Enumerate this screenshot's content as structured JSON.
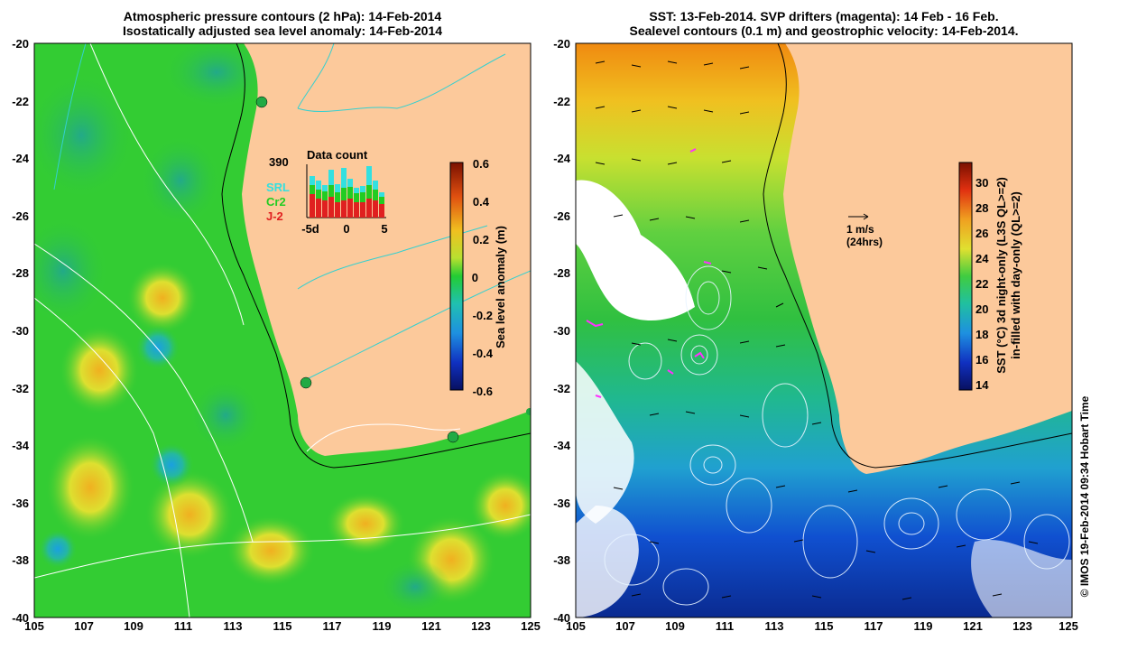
{
  "left_panel": {
    "title_line1": "Atmospheric pressure contours (2 hPa): 14-Feb-2014",
    "title_line2": "Isostatically adjusted sea level anomaly: 14-Feb-2014",
    "x_ticks": [
      "105",
      "107",
      "109",
      "111",
      "113",
      "115",
      "117",
      "119",
      "121",
      "123",
      "125"
    ],
    "y_ticks": [
      "-20",
      "-22",
      "-24",
      "-26",
      "-28",
      "-30",
      "-32",
      "-34",
      "-36",
      "-38",
      "-40"
    ],
    "colorbar_label": "Sea level anomaly (m)",
    "colorbar_ticks": [
      "0.6",
      "0.4",
      "0.2",
      "0",
      "-0.2",
      "-0.4",
      "-0.6"
    ],
    "inset": {
      "title": "Data count",
      "max_count": "390",
      "legend": [
        "SRL",
        "Cr2",
        "J-2"
      ],
      "x_ticks": [
        "-5d",
        "0",
        "5"
      ],
      "colors": {
        "SRL": "#33e0e0",
        "Cr2": "#22cc22",
        "J-2": "#e02020"
      }
    }
  },
  "right_panel": {
    "title_line1": "SST: 13-Feb-2014. SVP drifters (magenta): 14 Feb - 16 Feb.",
    "title_line2": "Sealevel contours (0.1 m) and geostrophic velocity: 14-Feb-2014.",
    "x_ticks": [
      "105",
      "107",
      "109",
      "111",
      "113",
      "115",
      "117",
      "119",
      "121",
      "123",
      "125"
    ],
    "y_ticks": [
      "-20",
      "-22",
      "-24",
      "-26",
      "-28",
      "-30",
      "-32",
      "-34",
      "-36",
      "-38",
      "-40"
    ],
    "colorbar_label_line1": "SST (°C) 3d night-only (L3S QL>=2)",
    "colorbar_label_line2": "in-filled with day-only (QL>=2)",
    "colorbar_ticks": [
      "30",
      "28",
      "26",
      "24",
      "22",
      "20",
      "18",
      "16",
      "14"
    ],
    "velocity_scale": "1 m/s",
    "velocity_scale_sub": "(24hrs)"
  },
  "credit": "© IMOS 19-Feb-2014 09:34 Hobart Time",
  "colors": {
    "land": "#fcc99b",
    "ocean_green": "#33cc33",
    "ocean_yellow": "#ddd833",
    "sst_blue": "#1040c8",
    "coast": "#000000"
  }
}
